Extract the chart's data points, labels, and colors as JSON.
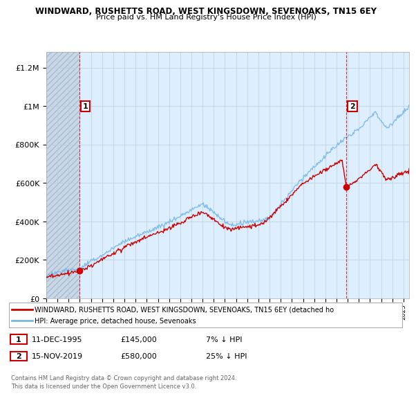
{
  "title": "WINDWARD, RUSHETTS ROAD, WEST KINGSDOWN, SEVENOAKS, TN15 6EY",
  "subtitle": "Price paid vs. HM Land Registry's House Price Index (HPI)",
  "ylabel_ticks": [
    "£0",
    "£200K",
    "£400K",
    "£600K",
    "£800K",
    "£1M",
    "£1.2M"
  ],
  "ytick_values": [
    0,
    200000,
    400000,
    600000,
    800000,
    1000000,
    1200000
  ],
  "ylim": [
    0,
    1280000
  ],
  "xlim_start": 1993,
  "xlim_end": 2025.5,
  "sale1_year": 1995.95,
  "sale1_price": 145000,
  "sale2_year": 2019.88,
  "sale2_price": 580000,
  "sale2_price_before": 710000,
  "hpi_color": "#7ab8e8",
  "price_color": "#cc0000",
  "annotation_box_color": "#cc0000",
  "plot_bg_color": "#ddeeff",
  "hatch_region_end": 1995.95,
  "grid_color": "#bbccdd",
  "legend_entry1": "WINDWARD, RUSHETTS ROAD, WEST KINGSDOWN, SEVENOAKS, TN15 6EY (detached ho",
  "legend_entry2": "HPI: Average price, detached house, Sevenoaks",
  "note1_date": "11-DEC-1995",
  "note1_price": "£145,000",
  "note1_pct": "7% ↓ HPI",
  "note2_date": "15-NOV-2019",
  "note2_price": "£580,000",
  "note2_pct": "25% ↓ HPI",
  "copyright": "Contains HM Land Registry data © Crown copyright and database right 2024.\nThis data is licensed under the Open Government Licence v3.0.",
  "title_fontsize": 8.5,
  "subtitle_fontsize": 8
}
